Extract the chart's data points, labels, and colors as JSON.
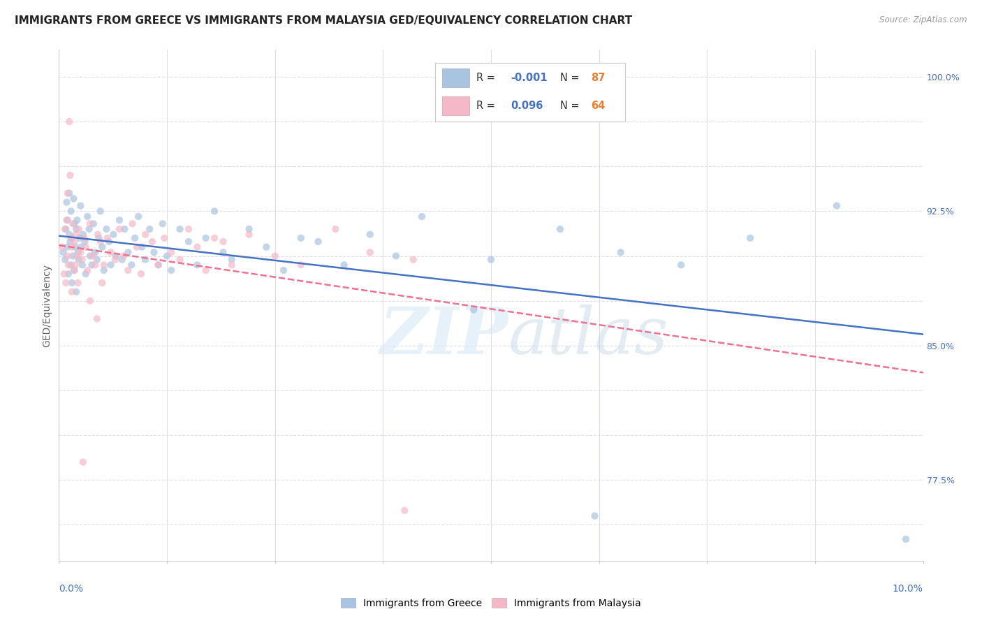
{
  "title": "IMMIGRANTS FROM GREECE VS IMMIGRANTS FROM MALAYSIA GED/EQUIVALENCY CORRELATION CHART",
  "source": "Source: ZipAtlas.com",
  "ylabel": "GED/Equivalency",
  "yticks": [
    75.0,
    77.5,
    80.0,
    82.5,
    85.0,
    87.5,
    90.0,
    92.5,
    95.0,
    97.5,
    100.0
  ],
  "ytick_labels": [
    "",
    "77.5%",
    "",
    "",
    "85.0%",
    "",
    "",
    "92.5%",
    "",
    "",
    "100.0%"
  ],
  "xmin": 0.0,
  "xmax": 10.0,
  "ymin": 73.0,
  "ymax": 101.5,
  "greece_color": "#a8c4e0",
  "malaysia_color": "#f4b8c8",
  "greece_line_color": "#4472c4",
  "malaysia_line_color": "#f07090",
  "legend_color_R": "#4472c4",
  "legend_color_N": "#ed7d31",
  "greece_scatter_x": [
    0.05,
    0.07,
    0.08,
    0.09,
    0.1,
    0.1,
    0.11,
    0.12,
    0.12,
    0.13,
    0.14,
    0.14,
    0.15,
    0.15,
    0.16,
    0.17,
    0.18,
    0.18,
    0.19,
    0.2,
    0.2,
    0.21,
    0.22,
    0.23,
    0.24,
    0.25,
    0.26,
    0.27,
    0.28,
    0.3,
    0.31,
    0.33,
    0.35,
    0.36,
    0.38,
    0.4,
    0.42,
    0.44,
    0.46,
    0.48,
    0.5,
    0.52,
    0.55,
    0.58,
    0.6,
    0.63,
    0.66,
    0.7,
    0.73,
    0.76,
    0.8,
    0.84,
    0.88,
    0.92,
    0.96,
    1.0,
    1.05,
    1.1,
    1.15,
    1.2,
    1.25,
    1.3,
    1.4,
    1.5,
    1.6,
    1.7,
    1.8,
    1.9,
    2.0,
    2.2,
    2.4,
    2.6,
    2.8,
    3.0,
    3.3,
    3.6,
    3.9,
    4.2,
    5.0,
    5.8,
    6.5,
    7.2,
    8.0,
    9.0,
    9.8,
    4.8,
    6.2
  ],
  "greece_scatter_y": [
    90.2,
    89.8,
    91.5,
    93.0,
    92.0,
    90.5,
    89.0,
    91.2,
    93.5,
    90.8,
    89.5,
    92.5,
    91.0,
    88.5,
    90.0,
    93.2,
    91.8,
    89.2,
    90.5,
    91.5,
    88.0,
    92.0,
    90.2,
    89.8,
    91.0,
    92.8,
    90.5,
    89.5,
    91.2,
    90.8,
    89.0,
    92.2,
    91.5,
    90.0,
    89.5,
    91.8,
    90.2,
    89.8,
    91.0,
    92.5,
    90.5,
    89.2,
    91.5,
    90.8,
    89.5,
    91.2,
    90.0,
    92.0,
    89.8,
    91.5,
    90.2,
    89.5,
    91.0,
    92.2,
    90.5,
    89.8,
    91.5,
    90.2,
    89.5,
    91.8,
    90.0,
    89.2,
    91.5,
    90.8,
    89.5,
    91.0,
    92.5,
    90.2,
    89.8,
    91.5,
    90.5,
    89.2,
    91.0,
    90.8,
    89.5,
    91.2,
    90.0,
    92.2,
    89.8,
    91.5,
    90.2,
    89.5,
    91.0,
    92.8,
    74.2,
    87.0,
    75.5
  ],
  "malaysia_scatter_x": [
    0.04,
    0.06,
    0.07,
    0.08,
    0.09,
    0.1,
    0.1,
    0.11,
    0.12,
    0.13,
    0.14,
    0.15,
    0.15,
    0.16,
    0.17,
    0.18,
    0.19,
    0.2,
    0.21,
    0.22,
    0.23,
    0.25,
    0.27,
    0.29,
    0.31,
    0.33,
    0.36,
    0.39,
    0.42,
    0.45,
    0.48,
    0.52,
    0.56,
    0.6,
    0.65,
    0.7,
    0.75,
    0.8,
    0.85,
    0.9,
    0.95,
    1.0,
    1.08,
    1.15,
    1.22,
    1.3,
    1.4,
    1.5,
    1.6,
    1.7,
    1.8,
    1.9,
    2.0,
    2.2,
    2.5,
    2.8,
    3.2,
    3.6,
    4.1,
    4.0,
    0.36,
    0.44,
    0.5,
    0.28
  ],
  "malaysia_scatter_y": [
    90.5,
    89.0,
    91.5,
    88.5,
    92.0,
    90.0,
    93.5,
    89.5,
    97.5,
    94.5,
    91.0,
    90.5,
    88.0,
    91.8,
    89.2,
    90.8,
    89.5,
    91.2,
    90.0,
    88.5,
    91.5,
    90.2,
    89.8,
    91.0,
    90.5,
    89.2,
    91.8,
    90.0,
    89.5,
    91.2,
    90.8,
    89.5,
    91.0,
    90.2,
    89.8,
    91.5,
    90.0,
    89.2,
    91.8,
    90.5,
    89.0,
    91.2,
    90.8,
    89.5,
    91.0,
    90.2,
    89.8,
    91.5,
    90.5,
    89.2,
    91.0,
    90.8,
    89.5,
    91.2,
    90.0,
    89.5,
    91.5,
    90.2,
    89.8,
    75.8,
    87.5,
    86.5,
    88.5,
    78.5
  ],
  "watermark_zip": "ZIP",
  "watermark_atlas": "atlas",
  "background_color": "#ffffff",
  "grid_color": "#dedee8",
  "title_fontsize": 11,
  "axis_label_fontsize": 10,
  "tick_fontsize": 9,
  "scatter_size": 55,
  "scatter_alpha": 0.7,
  "legend_fontsize": 11
}
